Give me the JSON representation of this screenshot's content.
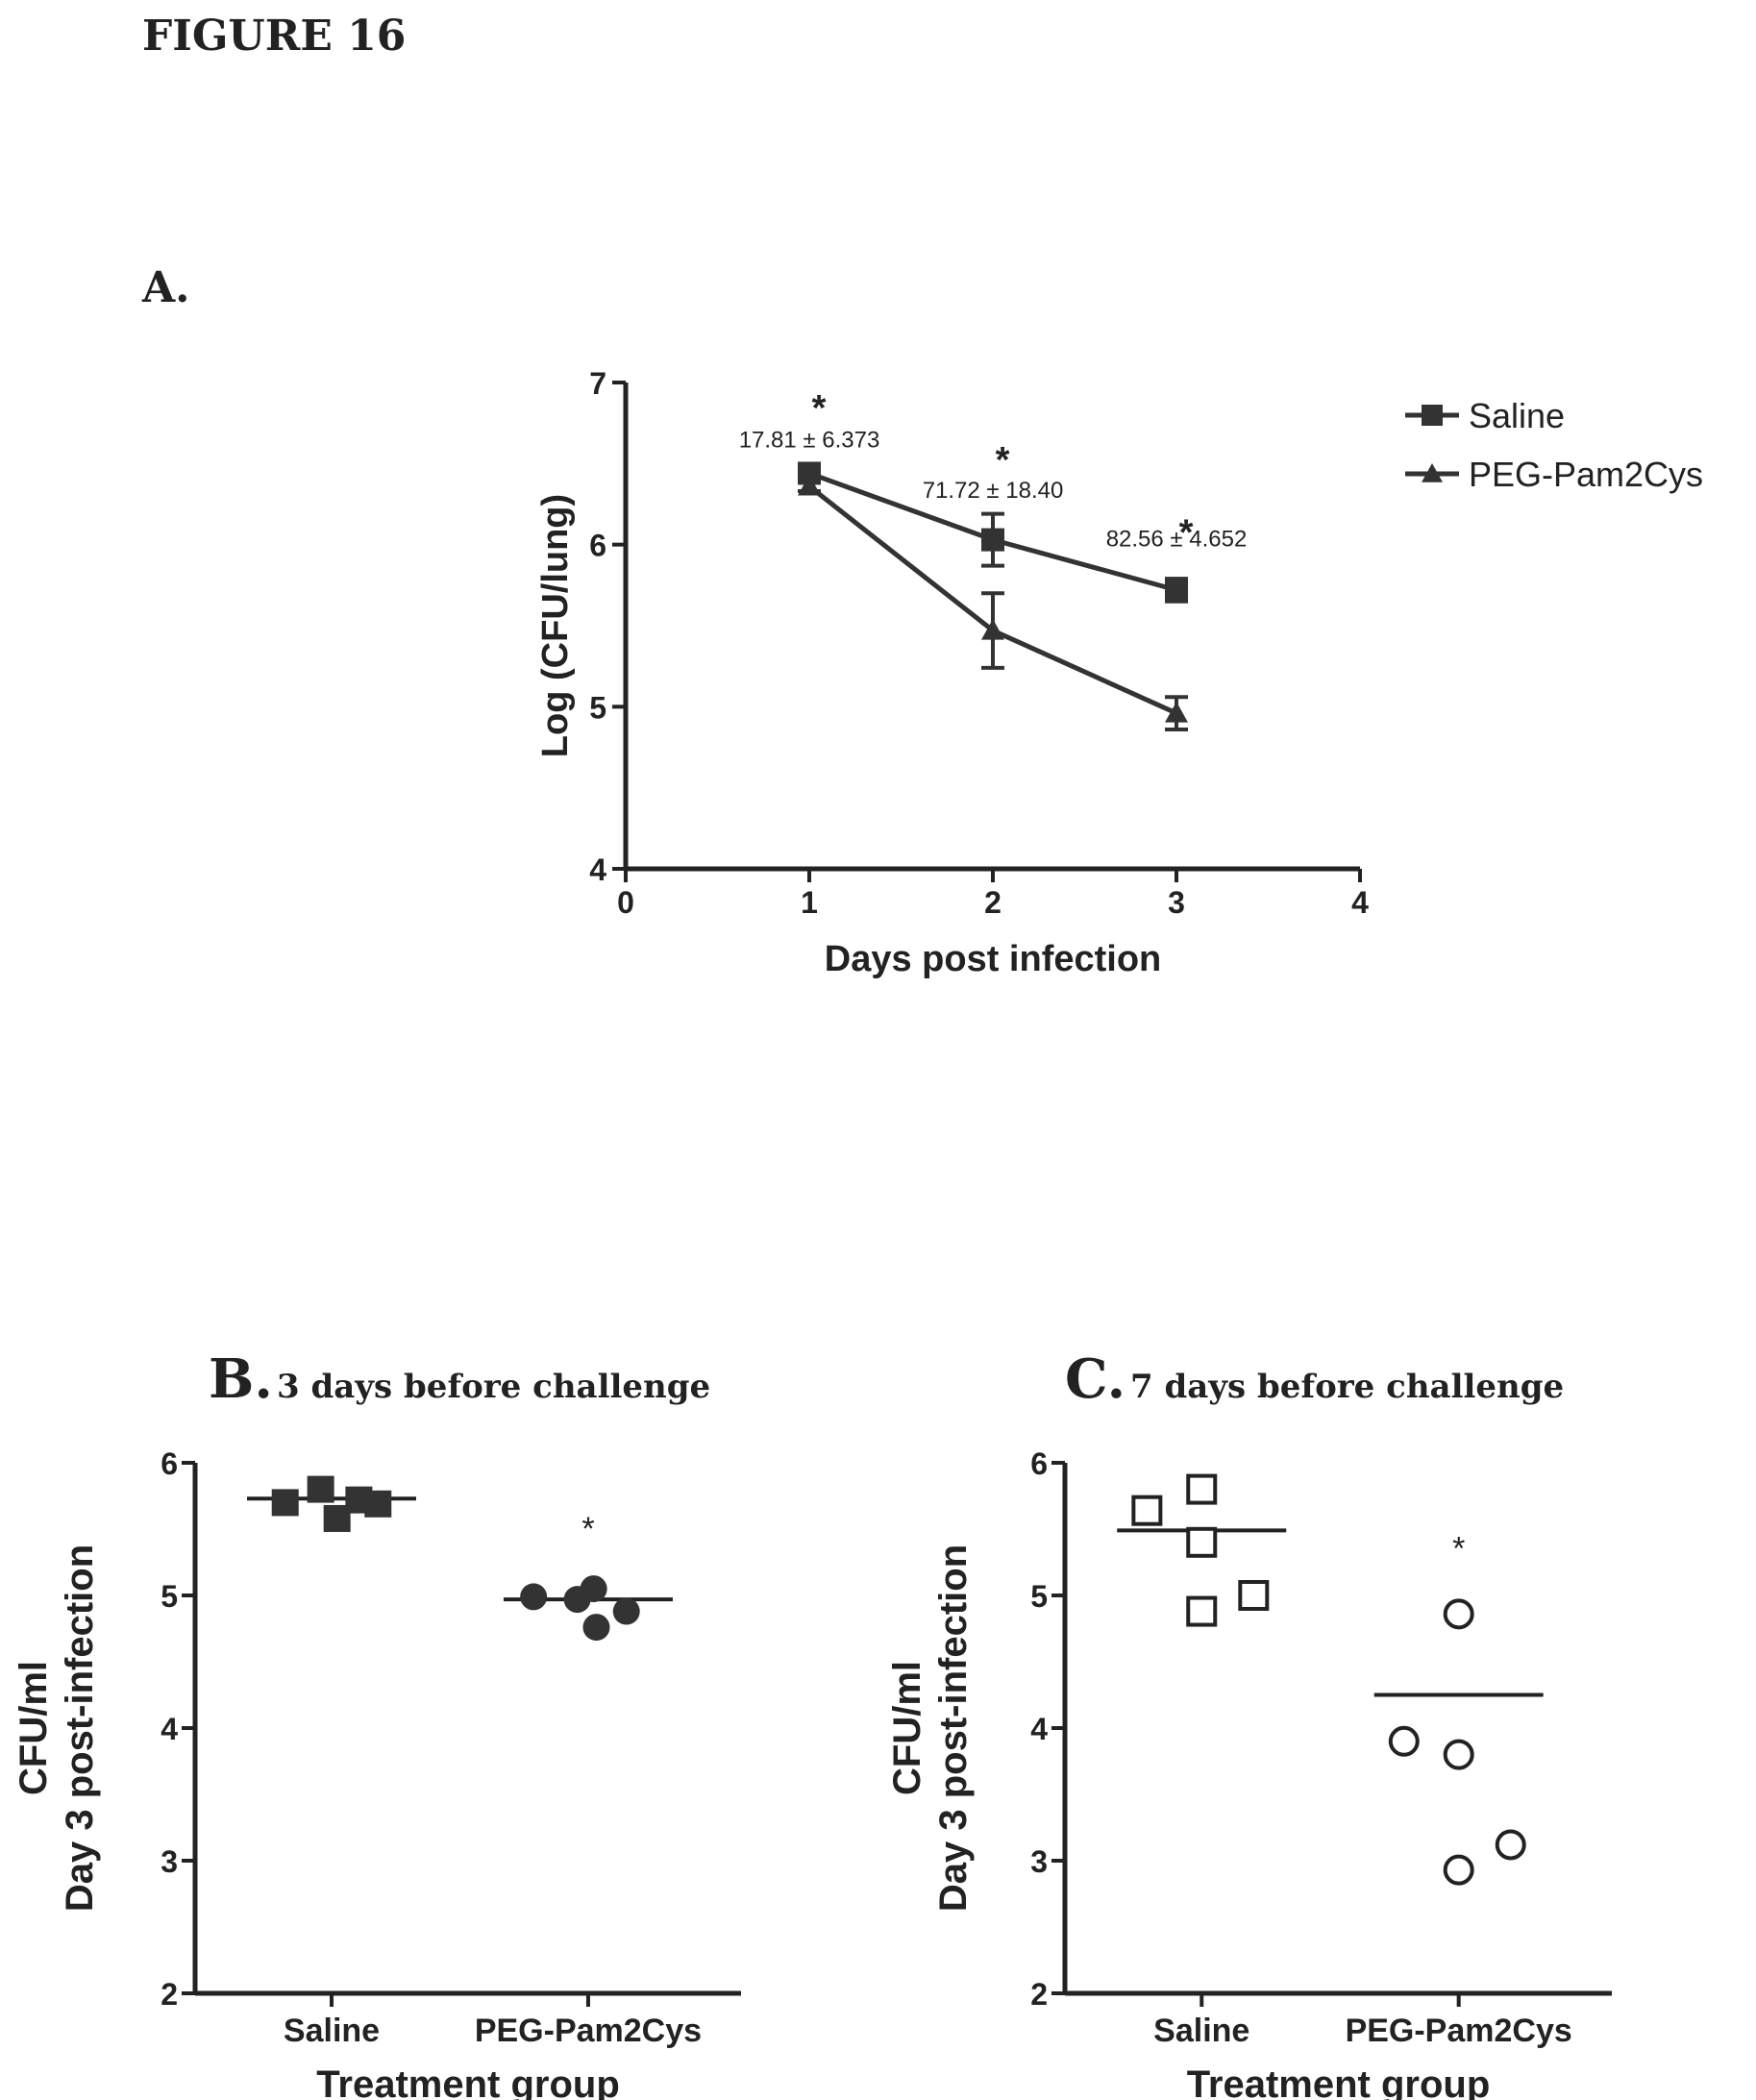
{
  "figure": {
    "title": "FIGURE 16"
  },
  "panel_a": {
    "label": "A."
  },
  "panel_b": {
    "label": "B.",
    "heading": "3 days before challenge"
  },
  "panel_c": {
    "label": "C.",
    "heading": "7 days before challenge"
  },
  "chart_data": [
    {
      "id": "A",
      "type": "line",
      "xlabel": "Days post infection",
      "ylabel": "Log (CFU/lung)",
      "xlim": [
        0,
        4
      ],
      "ylim": [
        4,
        7
      ],
      "xticks": [
        0,
        1,
        2,
        3,
        4
      ],
      "yticks": [
        4,
        5,
        6,
        7
      ],
      "legend_position": "top-right",
      "series": [
        {
          "name": "Saline",
          "marker": "square",
          "color": "#333333",
          "x": [
            1,
            2,
            3
          ],
          "y": [
            6.44,
            6.03,
            5.72
          ],
          "err": [
            0.03,
            0.16,
            0.07
          ]
        },
        {
          "name": "PEG-Pam2Cys",
          "marker": "triangle",
          "color": "#333333",
          "x": [
            1,
            2,
            3
          ],
          "y": [
            6.36,
            5.47,
            4.96
          ],
          "err": [
            0.03,
            0.23,
            0.1
          ]
        }
      ],
      "annotations": [
        {
          "x": 1,
          "y": 6.6,
          "text": "17.81 ± 6.373"
        },
        {
          "x": 2,
          "y": 6.29,
          "text": "71.72 ± 18.40"
        },
        {
          "x": 3,
          "y": 5.99,
          "text": "82.56 ± 4.652"
        }
      ],
      "significance": [
        {
          "x": 1,
          "y": 6.77,
          "text": "*"
        },
        {
          "x": 2,
          "y": 6.45,
          "text": "*"
        },
        {
          "x": 3,
          "y": 6.0,
          "text": "*"
        }
      ]
    },
    {
      "id": "B",
      "type": "scatter",
      "xlabel": "Treatment group",
      "ylabel_lines": [
        "CFU/ml",
        "Day 3 post-infection"
      ],
      "ylim": [
        2,
        6
      ],
      "yticks": [
        2,
        3,
        4,
        5,
        6
      ],
      "categories": [
        "Saline",
        "PEG-Pam2Cys"
      ],
      "series": [
        {
          "category": "Saline",
          "marker": "square-filled",
          "points": [
            [
              -0.17,
              5.7
            ],
            [
              -0.04,
              5.8
            ],
            [
              0.02,
              5.58
            ],
            [
              0.1,
              5.72
            ],
            [
              0.17,
              5.69
            ]
          ],
          "mean": 5.73
        },
        {
          "category": "PEG-Pam2Cys",
          "marker": "circle-filled",
          "points": [
            [
              -0.2,
              4.99
            ],
            [
              -0.04,
              4.97
            ],
            [
              0.02,
              5.05
            ],
            [
              0.03,
              4.76
            ],
            [
              0.14,
              4.88
            ]
          ],
          "mean": 4.97
        }
      ],
      "significance": [
        {
          "category": "PEG-Pam2Cys",
          "y": 5.42,
          "text": "*"
        }
      ]
    },
    {
      "id": "C",
      "type": "scatter",
      "xlabel": "Treatment group",
      "ylabel_lines": [
        "CFU/ml",
        "Day 3 post-infection"
      ],
      "ylim": [
        2,
        6
      ],
      "yticks": [
        2,
        3,
        4,
        5,
        6
      ],
      "categories": [
        "Saline",
        "PEG-Pam2Cys"
      ],
      "series": [
        {
          "category": "Saline",
          "marker": "square-open",
          "points": [
            [
              -0.2,
              5.64
            ],
            [
              0.0,
              5.8
            ],
            [
              0.0,
              5.4
            ],
            [
              0.0,
              4.88
            ],
            [
              0.19,
              5.0
            ]
          ],
          "mean": 5.49
        },
        {
          "category": "PEG-Pam2Cys",
          "marker": "circle-open",
          "points": [
            [
              -0.2,
              3.9
            ],
            [
              0.0,
              4.86
            ],
            [
              0.0,
              3.8
            ],
            [
              0.0,
              2.93
            ],
            [
              0.19,
              3.12
            ]
          ],
          "mean": 4.25
        }
      ],
      "significance": [
        {
          "category": "PEG-Pam2Cys",
          "y": 5.27,
          "text": "*"
        }
      ]
    }
  ]
}
